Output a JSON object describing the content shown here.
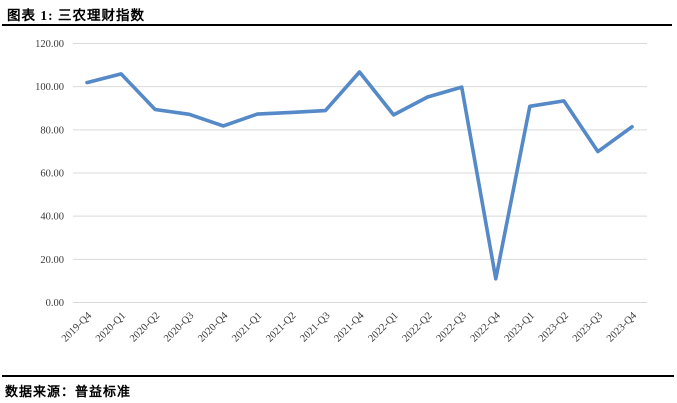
{
  "header": {
    "title": "图表 1: 三农理财指数"
  },
  "footer": {
    "source": "数据来源：普益标准"
  },
  "chart_data": {
    "type": "line",
    "title": "三农理财指数",
    "xlabel": "",
    "ylabel": "",
    "categories": [
      "2019-Q4",
      "2020-Q1",
      "2020-Q2",
      "2020-Q3",
      "2020-Q4",
      "2021-Q1",
      "2021-Q2",
      "2021-Q3",
      "2021-Q4",
      "2022-Q1",
      "2022-Q2",
      "2022-Q3",
      "2022-Q4",
      "2023-Q1",
      "2023-Q2",
      "2023-Q3",
      "2023-Q4"
    ],
    "values": [
      101.9,
      105.9,
      89.4,
      87.2,
      81.8,
      87.3,
      88.1,
      88.9,
      106.8,
      86.9,
      95.2,
      99.8,
      11.0,
      90.9,
      93.4,
      69.9,
      81.4
    ],
    "ylim": [
      0,
      120
    ],
    "ytick_interval": 20,
    "ytick_labels": [
      "0.00",
      "20.00",
      "40.00",
      "60.00",
      "80.00",
      "100.00",
      "120.00"
    ],
    "grid": true,
    "legend_position": "none",
    "colors": {
      "line": "#5589C7",
      "gridline": "#D9D9D9",
      "axis_text": "#3A3A3A"
    }
  }
}
